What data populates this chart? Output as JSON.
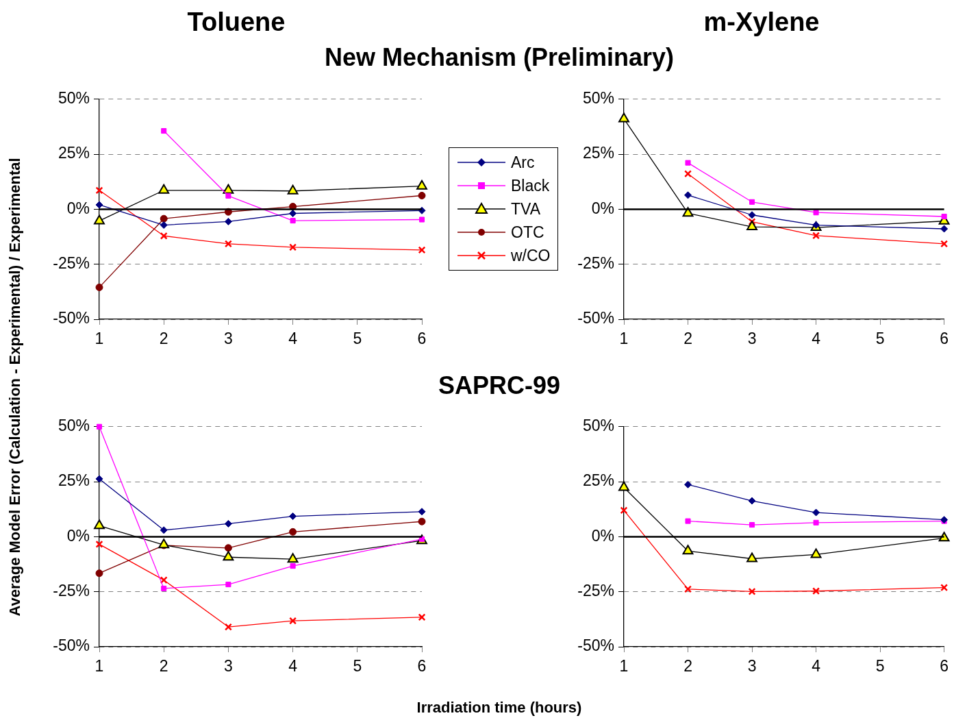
{
  "chart_data": [
    {
      "type": "line",
      "title": "Toluene",
      "subtitle": "New Mechanism (Preliminary)",
      "ylabel": "Average Model Error (Calculation - Experimental) / Experimental",
      "x": [
        1,
        2,
        3,
        4,
        6
      ],
      "series": [
        {
          "name": "Arc",
          "color": "#000080",
          "marker": "diamond",
          "values": [
            2.0,
            -7.2,
            -5.6,
            -1.9,
            -0.6
          ]
        },
        {
          "name": "Black",
          "color": "#ff00ff",
          "marker": "square",
          "values": [
            null,
            35.6,
            6.1,
            -5.2,
            -4.7
          ]
        },
        {
          "name": "TVA",
          "color": "#000000",
          "colors": [
            "#ffff00",
            "#ffff00",
            "#ffff00",
            "#ffff00",
            "#ffff00"
          ],
          "marker": "triangle",
          "values": [
            -5.3,
            8.6,
            8.6,
            8.3,
            10.5
          ]
        },
        {
          "name": "OTC",
          "color": "#800000",
          "marker": "circle",
          "values": [
            -35.5,
            -4.3,
            -1.2,
            1.2,
            6.2
          ]
        },
        {
          "name": "w/CO",
          "color": "#ff0000",
          "marker": "cross",
          "values": [
            8.6,
            -12.1,
            -15.7,
            -17.3,
            -18.5
          ]
        }
      ],
      "xlim": [
        1,
        6
      ],
      "xticks": [
        1,
        2,
        3,
        4,
        5,
        6
      ],
      "ylim": [
        -50,
        50
      ],
      "yticks": [
        {
          "value": -50,
          "label": "-50%"
        },
        {
          "value": -25,
          "label": "-25%"
        },
        {
          "value": 0,
          "label": "0%"
        },
        {
          "value": 25,
          "label": "25%"
        },
        {
          "value": 50,
          "label": "50%"
        }
      ],
      "grid": "y",
      "legend": "right",
      "ref_lines": [
        {
          "axis": "y",
          "value": 0,
          "color": "#000000"
        }
      ]
    },
    {
      "type": "line",
      "title": "m-Xylene",
      "x": [
        1,
        2,
        3,
        4,
        6
      ],
      "series": [
        {
          "color": "#000080",
          "marker": "diamond",
          "values": [
            null,
            6.4,
            -2.6,
            -7.2,
            -8.9
          ]
        },
        {
          "color": "#ff00ff",
          "marker": "square",
          "values": [
            null,
            21.1,
            3.3,
            -1.5,
            -3.3
          ]
        },
        {
          "color": "#000000",
          "colors": [
            "#ffff00",
            "#ffff00",
            "#ffff00",
            "#ffff00",
            "#ffff00"
          ],
          "marker": "triangle",
          "values": [
            41.1,
            -1.8,
            -8.0,
            -8.3,
            -5.4
          ]
        },
        {
          "color": "#ff0000",
          "marker": "cross",
          "values": [
            null,
            16.1,
            -5.7,
            -12.0,
            -15.7
          ]
        }
      ],
      "xlim": [
        1,
        6
      ],
      "xticks": [
        1,
        2,
        3,
        4,
        5,
        6
      ],
      "ylim": [
        -50,
        50
      ],
      "yticks": [
        {
          "value": -50,
          "label": "-50%"
        },
        {
          "value": -25,
          "label": "-25%"
        },
        {
          "value": 0,
          "label": "0%"
        },
        {
          "value": 25,
          "label": "25%"
        },
        {
          "value": 50,
          "label": "50%"
        }
      ],
      "grid": "y",
      "ref_lines": [
        {
          "axis": "y",
          "value": 0,
          "color": "#000000"
        }
      ]
    },
    {
      "type": "line",
      "subtitle": "SAPRC-99",
      "xlabel": "Irradiation time (hours)",
      "x": [
        1,
        2,
        3,
        4,
        6
      ],
      "series": [
        {
          "color": "#000080",
          "marker": "diamond",
          "values": [
            26.3,
            3.0,
            5.9,
            9.3,
            11.4
          ]
        },
        {
          "color": "#ff00ff",
          "marker": "square",
          "values": [
            50,
            -23.5,
            -21.7,
            -13.3,
            -1.1
          ]
        },
        {
          "color": "#000000",
          "colors": [
            "#ffff00",
            "#ffff00",
            "#ffff00",
            "#ffff00",
            "#ffff00"
          ],
          "marker": "triangle",
          "values": [
            5.0,
            -3.7,
            -9.3,
            -10.2,
            -1.8
          ]
        },
        {
          "color": "#800000",
          "marker": "circle",
          "values": [
            -16.6,
            -3.9,
            -5.1,
            2.2,
            6.9
          ]
        },
        {
          "color": "#ff0000",
          "marker": "cross",
          "values": [
            -3.4,
            -19.7,
            -41.0,
            -38.2,
            -36.6
          ]
        }
      ],
      "xlim": [
        1,
        6
      ],
      "xticks": [
        1,
        2,
        3,
        4,
        5,
        6
      ],
      "ylim": [
        -50,
        50
      ],
      "yticks": [
        {
          "value": -50,
          "label": "-50%"
        },
        {
          "value": -25,
          "label": "-25%"
        },
        {
          "value": 0,
          "label": "0%"
        },
        {
          "value": 25,
          "label": "25%"
        },
        {
          "value": 50,
          "label": "50%"
        }
      ],
      "grid": "y",
      "ref_lines": [
        {
          "axis": "y",
          "value": 0,
          "color": "#000000"
        }
      ]
    },
    {
      "type": "line",
      "x": [
        1,
        2,
        3,
        4,
        6
      ],
      "series": [
        {
          "color": "#000080",
          "marker": "diamond",
          "values": [
            null,
            23.7,
            16.3,
            11.0,
            7.7
          ]
        },
        {
          "color": "#ff00ff",
          "marker": "square",
          "values": [
            null,
            7.1,
            5.4,
            6.4,
            7.1
          ]
        },
        {
          "color": "#000000",
          "colors": [
            "#ffff00",
            "#ffff00",
            "#ffff00",
            "#ffff00",
            "#ffff00"
          ],
          "marker": "triangle",
          "values": [
            22.4,
            -6.5,
            -10.0,
            -8.1,
            -0.6
          ]
        },
        {
          "color": "#ff0000",
          "marker": "cross",
          "values": [
            12.0,
            -23.8,
            -24.9,
            -24.7,
            -23.1
          ]
        }
      ],
      "xlim": [
        1,
        6
      ],
      "xticks": [
        1,
        2,
        3,
        4,
        5,
        6
      ],
      "ylim": [
        -50,
        50
      ],
      "yticks": [
        {
          "value": -50,
          "label": "-50%"
        },
        {
          "value": -25,
          "label": "-25%"
        },
        {
          "value": 0,
          "label": "0%"
        },
        {
          "value": 25,
          "label": "25%"
        },
        {
          "value": 50,
          "label": "50%"
        }
      ],
      "grid": "y",
      "ref_lines": [
        {
          "axis": "y",
          "value": 0,
          "color": "#000000"
        }
      ]
    }
  ]
}
